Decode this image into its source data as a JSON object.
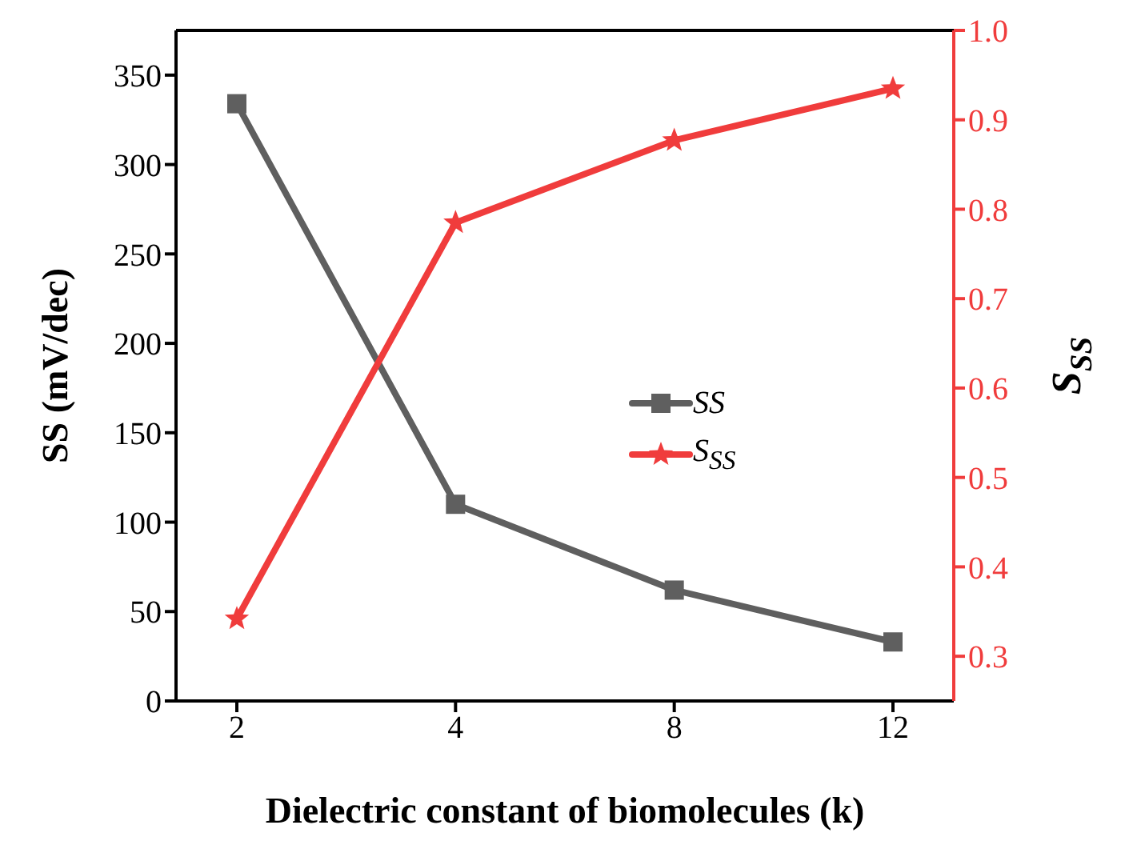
{
  "chart_data": {
    "type": "line",
    "xlabel": "Dielectric constant of biomolecules (k)",
    "ylabel": "SS (mV/dec)",
    "y2label": "S$_{SS}$",
    "categories": [
      "2",
      "4",
      "8",
      "12"
    ],
    "series": [
      {
        "name": "SS",
        "color": "#5f5f5f",
        "marker": "square",
        "values": [
          334,
          110,
          62,
          33
        ]
      },
      {
        "name": "S$_{SS}$",
        "color": "#f03c3c",
        "marker": "star",
        "axis": "y2",
        "values": [
          0.342,
          0.785,
          0.877,
          0.935
        ]
      }
    ],
    "ylim": [
      0,
      375
    ],
    "yticks": [
      0,
      50,
      100,
      150,
      200,
      250,
      300,
      350
    ],
    "y2lim": [
      0.25,
      1.0
    ],
    "y2ticks": [
      0.3,
      0.4,
      0.5,
      0.6,
      0.7,
      0.8,
      0.9,
      {
        "value": 1,
        "label": "1.0"
      }
    ],
    "grid": false,
    "legend": "center",
    "line_style": "solid"
  }
}
